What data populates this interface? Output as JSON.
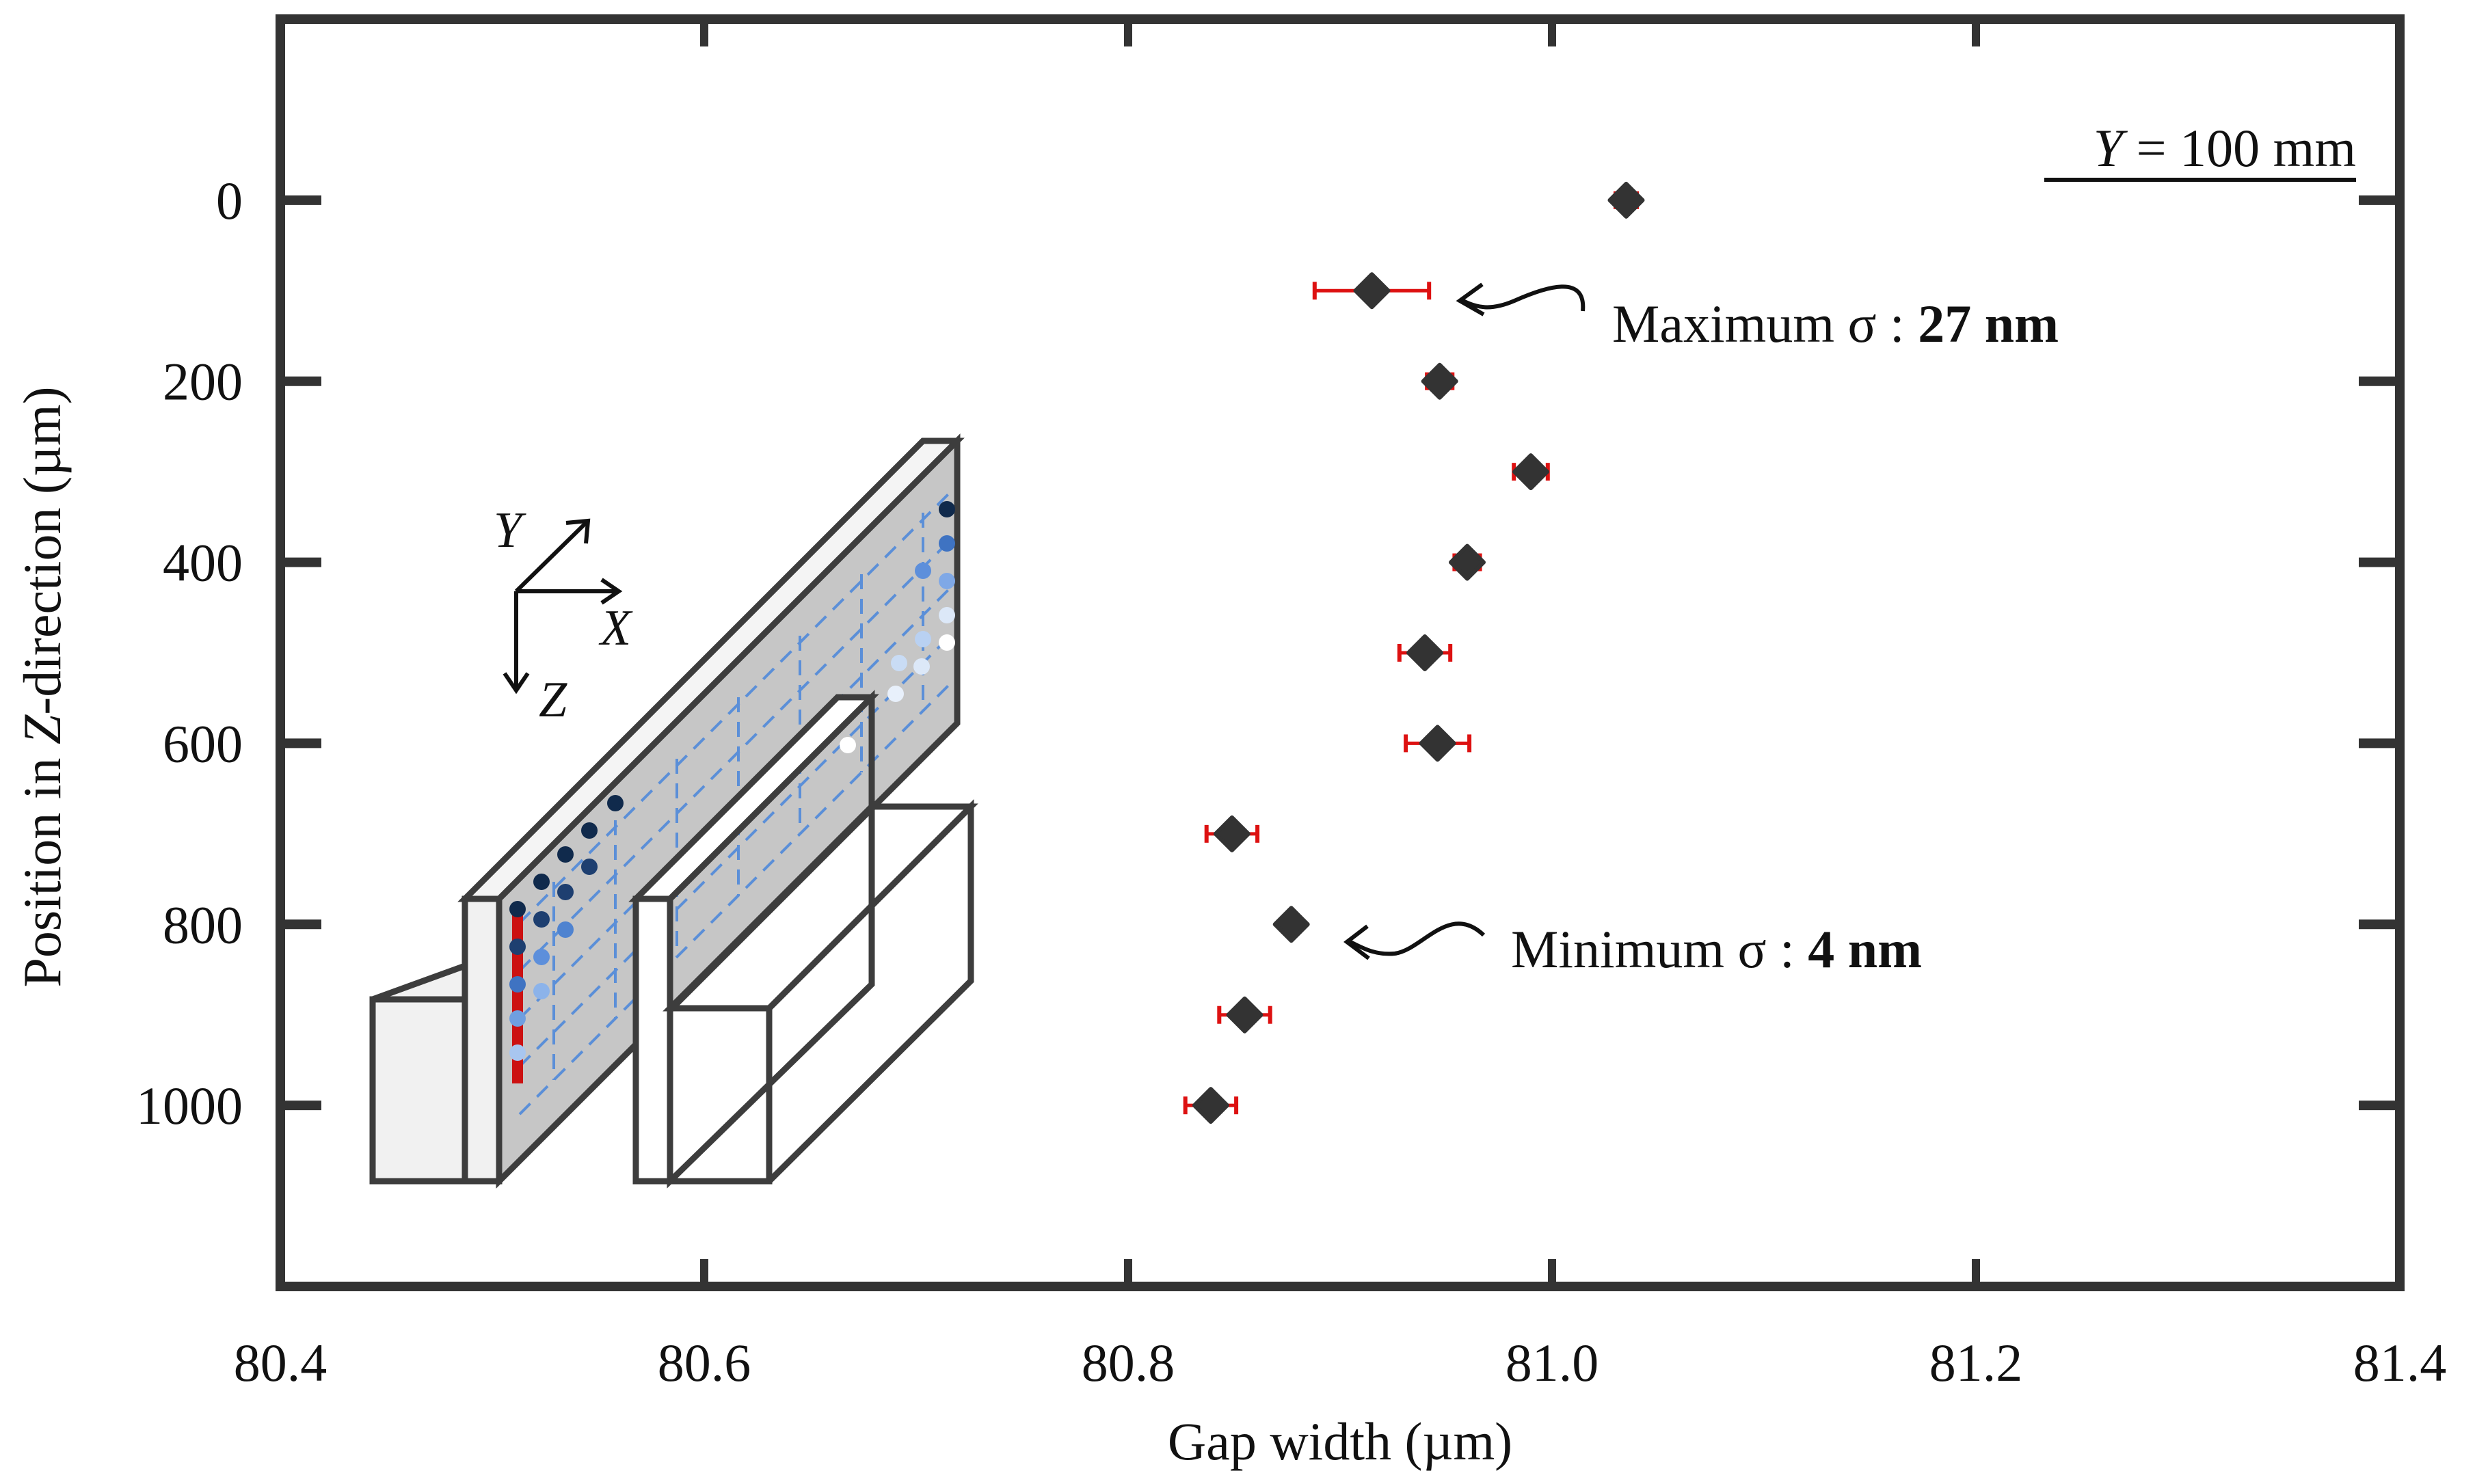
{
  "chart_data": {
    "type": "scatter",
    "xlabel": "Gap width (µm)",
    "ylabel_prefix": "Position in ",
    "ylabel_italic": "Z",
    "ylabel_suffix": "-direction (µm)",
    "xlim": [
      80.4,
      81.4
    ],
    "ylim": [
      1200,
      -200
    ],
    "xticks": [
      80.4,
      80.6,
      80.8,
      81.0,
      81.2,
      81.4
    ],
    "xtick_labels": [
      "80.4",
      "80.6",
      "80.8",
      "81.0",
      "81.2",
      "81.4"
    ],
    "yticks": [
      0,
      200,
      400,
      600,
      800,
      1000
    ],
    "ytick_labels": [
      "0",
      "200",
      "400",
      "600",
      "800",
      "1000"
    ],
    "series": [
      {
        "name": "Gap width",
        "marker": "diamond",
        "color": "#333333",
        "errorbar_color": "#dd1111",
        "points": [
          {
            "z": 0,
            "gap": 81.035,
            "err": 0.005
          },
          {
            "z": 100,
            "gap": 80.915,
            "err": 0.027
          },
          {
            "z": 200,
            "gap": 80.947,
            "err": 0.006
          },
          {
            "z": 300,
            "gap": 80.99,
            "err": 0.008
          },
          {
            "z": 400,
            "gap": 80.96,
            "err": 0.006
          },
          {
            "z": 500,
            "gap": 80.94,
            "err": 0.012
          },
          {
            "z": 600,
            "gap": 80.946,
            "err": 0.015
          },
          {
            "z": 700,
            "gap": 80.849,
            "err": 0.012
          },
          {
            "z": 800,
            "gap": 80.877,
            "err": 0.004
          },
          {
            "z": 900,
            "gap": 80.855,
            "err": 0.012
          },
          {
            "z": 1000,
            "gap": 80.839,
            "err": 0.012
          }
        ]
      }
    ],
    "annotations": {
      "y_position_italic": "Y",
      "y_position_rest": " = 100 mm",
      "max_label": "Maximum σ : ",
      "max_value": "27 nm",
      "min_label": "Minimum σ : ",
      "min_value": "4 nm"
    },
    "inset_axes": {
      "y": "Y",
      "x": "X",
      "z": "Z"
    },
    "grid": false
  }
}
